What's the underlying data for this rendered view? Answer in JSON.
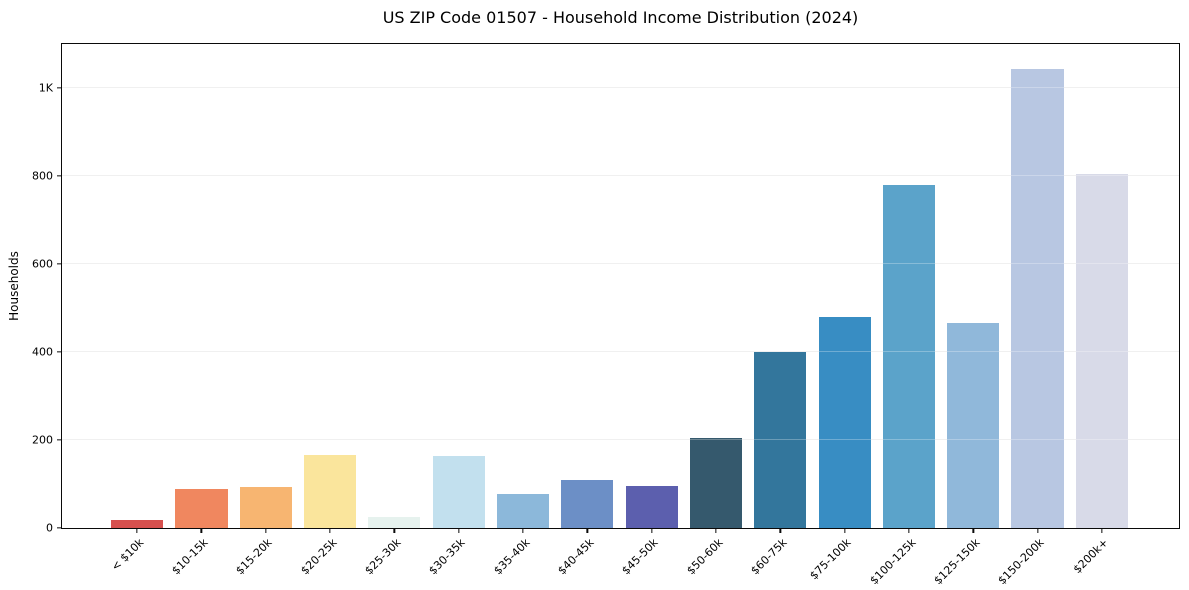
{
  "chart_title": "US ZIP Code 01507 - Household Income Distribution (2024)",
  "chart_data": {
    "type": "bar",
    "title": "US ZIP Code 01507 - Household Income Distribution (2024)",
    "xlabel": "",
    "ylabel": "Households",
    "categories": [
      "< $10k",
      "$10-15k",
      "$15-20k",
      "$20-25k",
      "$25-30k",
      "$30-35k",
      "$35-40k",
      "$40-45k",
      "$45-50k",
      "$50-60k",
      "$60-75k",
      "$75-100k",
      "$100-125k",
      "$125-150k",
      "$150-200k",
      "$200k+"
    ],
    "values": [
      18,
      88,
      93,
      165,
      25,
      163,
      77,
      110,
      95,
      204,
      400,
      480,
      780,
      467,
      1043,
      804
    ],
    "bar_colors": [
      "#d6504e",
      "#f0875f",
      "#f7b571",
      "#fae59c",
      "#e6f2ee",
      "#c2e0ee",
      "#8cb8da",
      "#6c8fc6",
      "#5c5fae",
      "#35596d",
      "#33769c",
      "#388dc3",
      "#5ba3ca",
      "#90b8da",
      "#b8c7e2",
      "#d8dae8"
    ],
    "ylim": [
      0,
      1100
    ],
    "yticks": [
      {
        "value": 0,
        "label": "0"
      },
      {
        "value": 200,
        "label": "200"
      },
      {
        "value": 400,
        "label": "400"
      },
      {
        "value": 600,
        "label": "600"
      },
      {
        "value": 800,
        "label": "800"
      },
      {
        "value": 1000,
        "label": "1K"
      }
    ],
    "grid": "horizontal",
    "legend": "none",
    "background_color": "#ffffff",
    "spine_color": "#0a0a0a",
    "gridline_color": "#ebebeb"
  }
}
